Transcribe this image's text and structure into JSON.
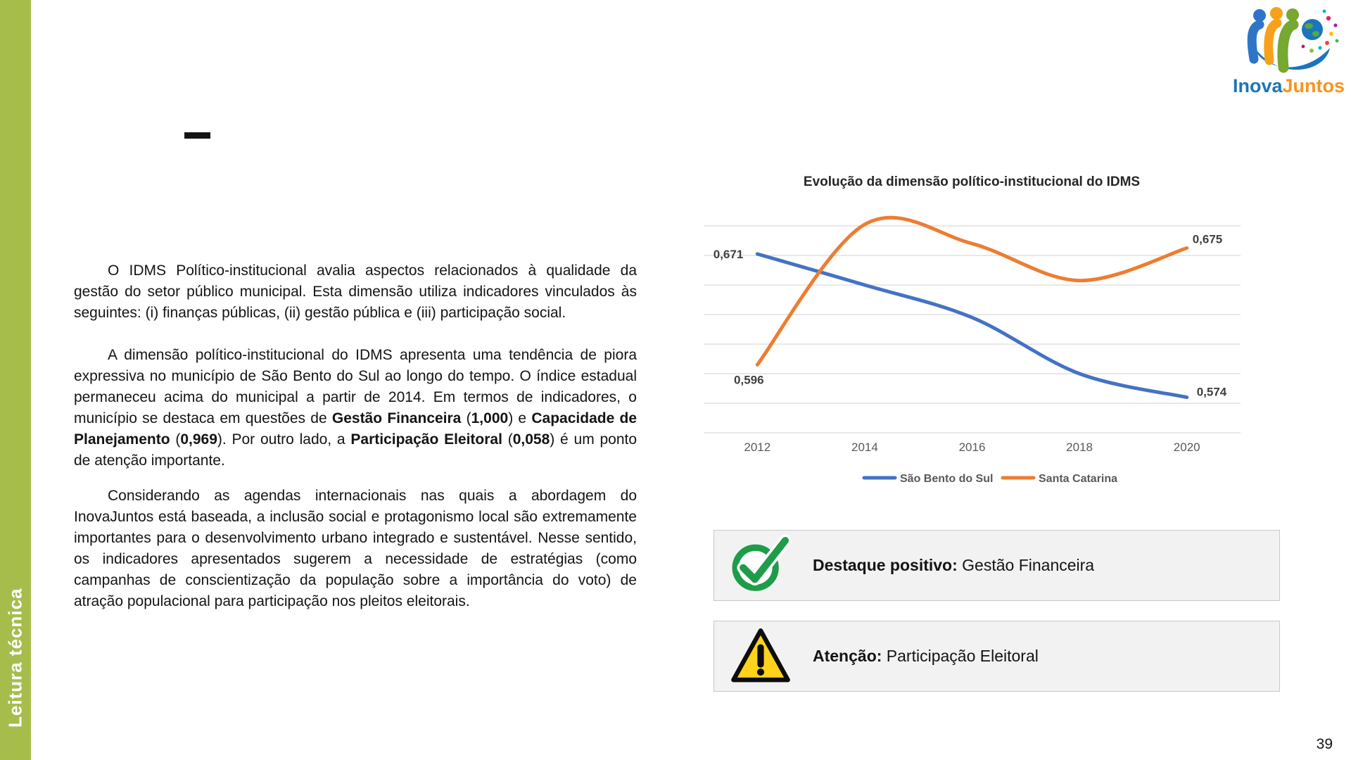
{
  "page": {
    "number": "39",
    "sidebar_label": "Leitura técnica"
  },
  "logo": {
    "name": "InovaJuntos",
    "text_inova": "Inova",
    "text_juntos": "Juntos"
  },
  "article": {
    "paragraphs": [
      {
        "runs": [
          {
            "text": "O IDMS Político-institucional avalia aspectos relacionados à qualidade da gestão do setor público municipal. Esta dimensão utiliza indicadores vinculados às seguintes: (i) finanças públicas, (ii) gestão pública e (iii) participação social.",
            "bold": false
          }
        ]
      },
      {
        "runs": [
          {
            "text": "A dimensão político-institucional do IDMS apresenta uma tendência de piora expressiva no município de São Bento do Sul ao longo do tempo. O índice estadual permaneceu acima do municipal a partir de 2014. Em termos de indicadores, o município se destaca em questões de ",
            "bold": false
          },
          {
            "text": "Gestão Financeira",
            "bold": true
          },
          {
            "text": " (",
            "bold": false
          },
          {
            "text": "1,000",
            "bold": true
          },
          {
            "text": ") e ",
            "bold": false
          },
          {
            "text": "Capacidade de Planejamento",
            "bold": true
          },
          {
            "text": " (",
            "bold": false
          },
          {
            "text": "0,969",
            "bold": true
          },
          {
            "text": "). Por outro lado, a ",
            "bold": false
          },
          {
            "text": "Participação Eleitoral",
            "bold": true
          },
          {
            "text": " (",
            "bold": false
          },
          {
            "text": "0,058",
            "bold": true
          },
          {
            "text": ") é um ponto de atenção importante.",
            "bold": false
          }
        ]
      },
      {
        "runs": [
          {
            "text": "Considerando as agendas internacionais nas quais a abordagem do InovaJuntos está baseada, a inclusão social e protagonismo local são extremamente importantes para o desenvolvimento urbano integrado e sustentável. Nesse sentido, os indicadores apresentados sugerem a necessidade de estratégias (como campanhas de conscientização da população sobre a importância do voto) de atração populacional para participação nos pleitos eleitorais.",
            "bold": false
          }
        ]
      }
    ]
  },
  "chart_data": {
    "type": "line",
    "title": "Evolução da dimensão político-institucional do IDMS",
    "categories": [
      "2012",
      "2014",
      "2016",
      "2018",
      "2020"
    ],
    "series": [
      {
        "name": "São Bento do Sul",
        "color": "#4472C4",
        "values": [
          0.671,
          0.65,
          0.628,
          0.59,
          0.574
        ]
      },
      {
        "name": "Santa Catarina",
        "color": "#ED7D31",
        "values": [
          0.596,
          0.691,
          0.678,
          0.653,
          0.675
        ]
      }
    ],
    "point_labels": [
      [
        "0,671",
        null,
        null,
        null,
        "0,574"
      ],
      [
        "0,596",
        null,
        null,
        null,
        "0,675"
      ]
    ],
    "ylim": [
      0.55,
      0.7
    ],
    "grid_step": 0.02,
    "grid_color": "#D9D9D9",
    "smooth": true,
    "legend_position": "bottom",
    "axis_text_color": "#595959",
    "label_text_color": "#404040",
    "xlabel": "",
    "ylabel": ""
  },
  "callouts": [
    {
      "icon": "check-circle-icon",
      "label": "Destaque positivo:",
      "text": " Gestão Financeira"
    },
    {
      "icon": "warning-triangle-icon",
      "label": "Atenção:",
      "text": " Participação Eleitoral"
    }
  ]
}
